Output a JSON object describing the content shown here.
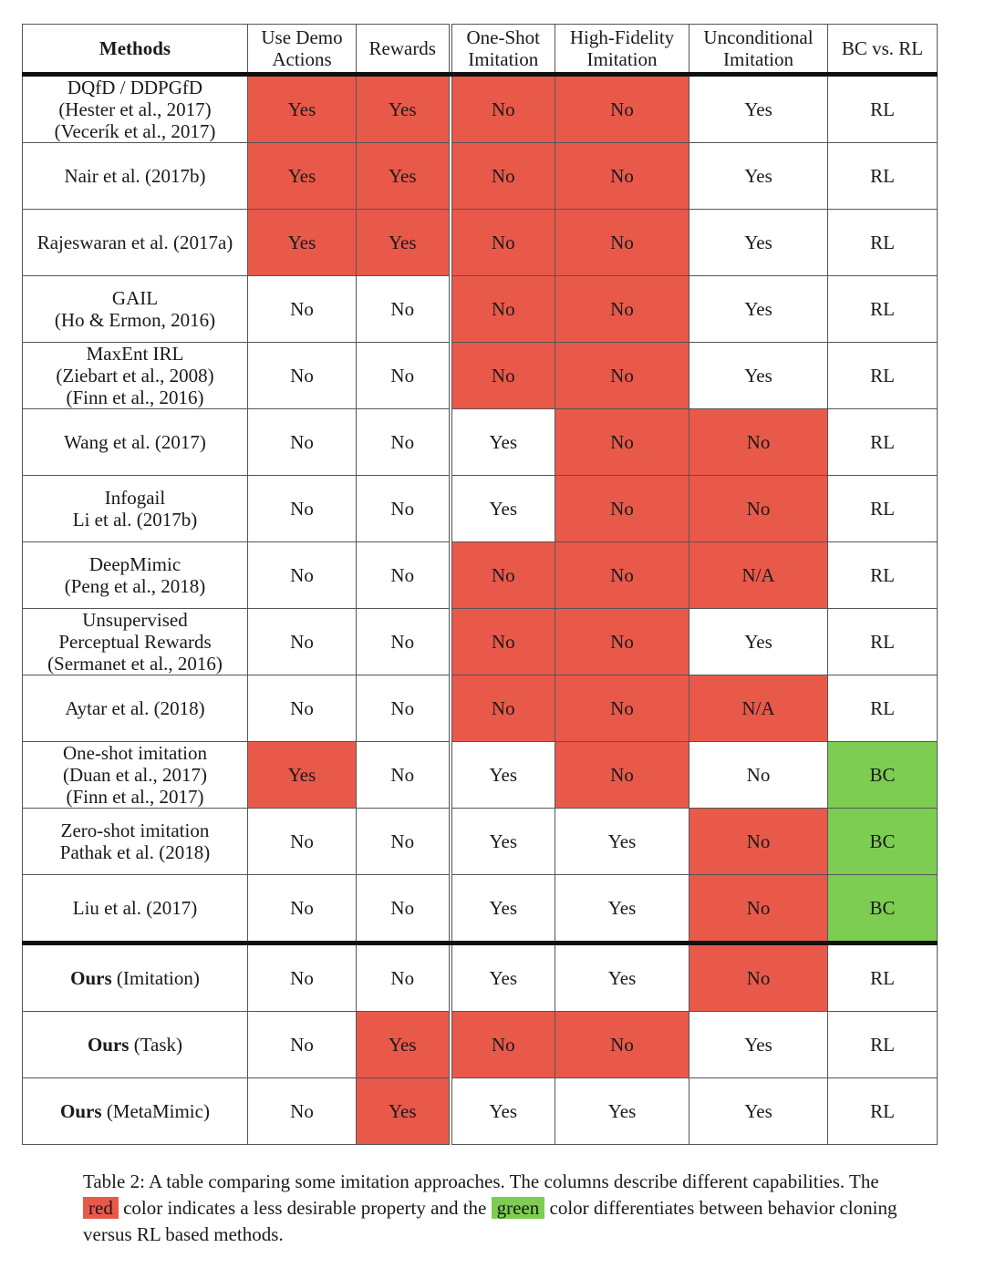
{
  "colors": {
    "red": "#e8594a",
    "green": "#7ccd52"
  },
  "headers": {
    "methods": "Methods",
    "use_demo": [
      "Use Demo",
      "Actions"
    ],
    "rewards": "Rewards",
    "one_shot": [
      "One-Shot",
      "Imitation"
    ],
    "high_fidelity": [
      "High-Fidelity",
      "Imitation"
    ],
    "unconditional": [
      "Unconditional",
      "Imitation"
    ],
    "bc_rl": "BC vs. RL"
  },
  "rows": [
    {
      "method_bold": "",
      "method": [
        "DQfD / DDPGfD",
        "(Hester et al., 2017)",
        "(Vecerík et al., 2017)"
      ],
      "cells": [
        {
          "v": "Yes",
          "c": "red"
        },
        {
          "v": "Yes",
          "c": "red"
        },
        {
          "v": "No",
          "c": "red"
        },
        {
          "v": "No",
          "c": "red"
        },
        {
          "v": "Yes",
          "c": ""
        },
        {
          "v": "RL",
          "c": ""
        }
      ]
    },
    {
      "method_bold": "",
      "method": [
        "Nair et al. (2017b)"
      ],
      "cells": [
        {
          "v": "Yes",
          "c": "red"
        },
        {
          "v": "Yes",
          "c": "red"
        },
        {
          "v": "No",
          "c": "red"
        },
        {
          "v": "No",
          "c": "red"
        },
        {
          "v": "Yes",
          "c": ""
        },
        {
          "v": "RL",
          "c": ""
        }
      ]
    },
    {
      "method_bold": "",
      "method": [
        "Rajeswaran et al. (2017a)"
      ],
      "cells": [
        {
          "v": "Yes",
          "c": "red"
        },
        {
          "v": "Yes",
          "c": "red"
        },
        {
          "v": "No",
          "c": "red"
        },
        {
          "v": "No",
          "c": "red"
        },
        {
          "v": "Yes",
          "c": ""
        },
        {
          "v": "RL",
          "c": ""
        }
      ]
    },
    {
      "method_bold": "",
      "method": [
        "GAIL",
        "(Ho & Ermon, 2016)"
      ],
      "cells": [
        {
          "v": "No",
          "c": ""
        },
        {
          "v": "No",
          "c": ""
        },
        {
          "v": "No",
          "c": "red"
        },
        {
          "v": "No",
          "c": "red"
        },
        {
          "v": "Yes",
          "c": ""
        },
        {
          "v": "RL",
          "c": ""
        }
      ]
    },
    {
      "method_bold": "",
      "method": [
        "MaxEnt IRL",
        "(Ziebart et al., 2008)",
        "(Finn et al., 2016)"
      ],
      "cells": [
        {
          "v": "No",
          "c": ""
        },
        {
          "v": "No",
          "c": ""
        },
        {
          "v": "No",
          "c": "red"
        },
        {
          "v": "No",
          "c": "red"
        },
        {
          "v": "Yes",
          "c": ""
        },
        {
          "v": "RL",
          "c": ""
        }
      ]
    },
    {
      "method_bold": "",
      "method": [
        "Wang et al. (2017)"
      ],
      "cells": [
        {
          "v": "No",
          "c": ""
        },
        {
          "v": "No",
          "c": ""
        },
        {
          "v": "Yes",
          "c": ""
        },
        {
          "v": "No",
          "c": "red"
        },
        {
          "v": "No",
          "c": "red"
        },
        {
          "v": "RL",
          "c": ""
        }
      ]
    },
    {
      "method_bold": "",
      "method": [
        "Infogail",
        "Li et al. (2017b)"
      ],
      "cells": [
        {
          "v": "No",
          "c": ""
        },
        {
          "v": "No",
          "c": ""
        },
        {
          "v": "Yes",
          "c": ""
        },
        {
          "v": "No",
          "c": "red"
        },
        {
          "v": "No",
          "c": "red"
        },
        {
          "v": "RL",
          "c": ""
        }
      ]
    },
    {
      "method_bold": "",
      "method": [
        "DeepMimic",
        "(Peng et al., 2018)"
      ],
      "cells": [
        {
          "v": "No",
          "c": ""
        },
        {
          "v": "No",
          "c": ""
        },
        {
          "v": "No",
          "c": "red"
        },
        {
          "v": "No",
          "c": "red"
        },
        {
          "v": "N/A",
          "c": "red"
        },
        {
          "v": "RL",
          "c": ""
        }
      ]
    },
    {
      "method_bold": "",
      "method": [
        "Unsupervised",
        "Perceptual Rewards",
        "(Sermanet et al., 2016)"
      ],
      "cells": [
        {
          "v": "No",
          "c": ""
        },
        {
          "v": "No",
          "c": ""
        },
        {
          "v": "No",
          "c": "red"
        },
        {
          "v": "No",
          "c": "red"
        },
        {
          "v": "Yes",
          "c": ""
        },
        {
          "v": "RL",
          "c": ""
        }
      ]
    },
    {
      "method_bold": "",
      "method": [
        "Aytar et al. (2018)"
      ],
      "cells": [
        {
          "v": "No",
          "c": ""
        },
        {
          "v": "No",
          "c": ""
        },
        {
          "v": "No",
          "c": "red"
        },
        {
          "v": "No",
          "c": "red"
        },
        {
          "v": "N/A",
          "c": "red"
        },
        {
          "v": "RL",
          "c": ""
        }
      ]
    },
    {
      "method_bold": "",
      "method": [
        "One-shot imitation",
        "(Duan et al., 2017)",
        "(Finn et al., 2017)"
      ],
      "cells": [
        {
          "v": "Yes",
          "c": "red"
        },
        {
          "v": "No",
          "c": ""
        },
        {
          "v": "Yes",
          "c": ""
        },
        {
          "v": "No",
          "c": "red"
        },
        {
          "v": "No",
          "c": ""
        },
        {
          "v": "BC",
          "c": "green"
        }
      ]
    },
    {
      "method_bold": "",
      "method": [
        "Zero-shot imitation",
        "Pathak et al. (2018)"
      ],
      "cells": [
        {
          "v": "No",
          "c": ""
        },
        {
          "v": "No",
          "c": ""
        },
        {
          "v": "Yes",
          "c": ""
        },
        {
          "v": "Yes",
          "c": ""
        },
        {
          "v": "No",
          "c": "red"
        },
        {
          "v": "BC",
          "c": "green"
        }
      ]
    },
    {
      "method_bold": "",
      "method": [
        "Liu et al. (2017)"
      ],
      "cells": [
        {
          "v": "No",
          "c": ""
        },
        {
          "v": "No",
          "c": ""
        },
        {
          "v": "Yes",
          "c": ""
        },
        {
          "v": "Yes",
          "c": ""
        },
        {
          "v": "No",
          "c": "red"
        },
        {
          "v": "BC",
          "c": "green"
        }
      ]
    },
    {
      "method_bold": "Ours",
      "method": [
        " (Imitation)"
      ],
      "cells": [
        {
          "v": "No",
          "c": ""
        },
        {
          "v": "No",
          "c": ""
        },
        {
          "v": "Yes",
          "c": ""
        },
        {
          "v": "Yes",
          "c": ""
        },
        {
          "v": "No",
          "c": "red"
        },
        {
          "v": "RL",
          "c": ""
        }
      ]
    },
    {
      "method_bold": "Ours",
      "method": [
        " (Task)"
      ],
      "cells": [
        {
          "v": "No",
          "c": ""
        },
        {
          "v": "Yes",
          "c": "red"
        },
        {
          "v": "No",
          "c": "red"
        },
        {
          "v": "No",
          "c": "red"
        },
        {
          "v": "Yes",
          "c": ""
        },
        {
          "v": "RL",
          "c": ""
        }
      ]
    },
    {
      "method_bold": "Ours",
      "method": [
        " (MetaMimic)"
      ],
      "cells": [
        {
          "v": "No",
          "c": ""
        },
        {
          "v": "Yes",
          "c": "red"
        },
        {
          "v": "Yes",
          "c": ""
        },
        {
          "v": "Yes",
          "c": ""
        },
        {
          "v": "Yes",
          "c": ""
        },
        {
          "v": "RL",
          "c": ""
        }
      ]
    }
  ],
  "caption": {
    "part1": "Table 2:  A table comparing some imitation approaches.  The columns describe different capabilities. The ",
    "red_word": "red",
    "part2": " color indicates a less desirable property and the ",
    "green_word": "green",
    "part3": " color differentiates between behavior cloning versus RL based methods."
  }
}
